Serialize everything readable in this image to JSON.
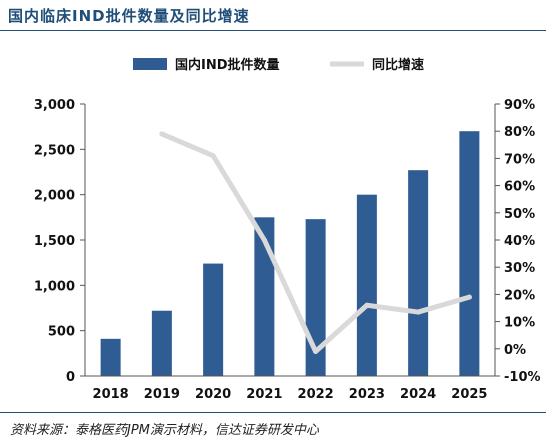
{
  "header": {
    "title": "国内临床IND批件数量及同比增速"
  },
  "footer": {
    "source": "资料来源：泰格医药JPM演示材料，信达证券研发中心"
  },
  "colors": {
    "bar": "#2f5c92",
    "line": "#d9d9d9",
    "title": "#1f4e79",
    "text": "#111111"
  },
  "chart_data": {
    "type": "bar",
    "categories": [
      "2018",
      "2019",
      "2020",
      "2021",
      "2022",
      "2023",
      "2024",
      "2025"
    ],
    "series": [
      {
        "name": "国内IND批件数量",
        "type": "bar",
        "axis": "left",
        "values": [
          410,
          720,
          1240,
          1750,
          1730,
          2000,
          2270,
          2700
        ]
      },
      {
        "name": "同比增速",
        "type": "line",
        "axis": "right",
        "values": [
          null,
          79,
          71,
          40,
          -1,
          16,
          13.5,
          19
        ]
      }
    ],
    "y_left": {
      "min": 0,
      "max": 3000,
      "ticks": [
        "0",
        "500",
        "1,000",
        "1,500",
        "2,000",
        "2,500",
        "3,000"
      ]
    },
    "y_right": {
      "min": -10,
      "max": 90,
      "ticks": [
        "-10%",
        "0%",
        "10%",
        "20%",
        "30%",
        "40%",
        "50%",
        "60%",
        "70%",
        "80%",
        "90%"
      ]
    },
    "legend_position": "top",
    "grid": false
  }
}
